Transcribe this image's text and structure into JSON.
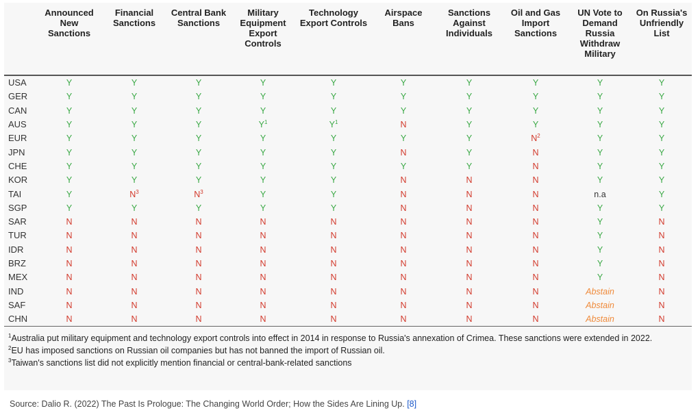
{
  "columns": [
    "Announced New Sanctions",
    "Financial Sanctions",
    "Central Bank Sanctions",
    "Military Equipment Export Controls",
    "Technology Export Controls",
    "Airspace Bans",
    "Sanctions Against Individuals",
    "Oil and Gas Import Sanctions",
    "UN Vote to Demand Russia Withdraw Military",
    "On Russia's Unfriendly List"
  ],
  "rows": [
    {
      "country": "USA",
      "cells": [
        [
          "Y",
          ""
        ],
        [
          "Y",
          ""
        ],
        [
          "Y",
          ""
        ],
        [
          "Y",
          ""
        ],
        [
          "Y",
          ""
        ],
        [
          "Y",
          ""
        ],
        [
          "Y",
          ""
        ],
        [
          "Y",
          ""
        ],
        [
          "Y",
          ""
        ],
        [
          "Y",
          ""
        ]
      ]
    },
    {
      "country": "GER",
      "cells": [
        [
          "Y",
          ""
        ],
        [
          "Y",
          ""
        ],
        [
          "Y",
          ""
        ],
        [
          "Y",
          ""
        ],
        [
          "Y",
          ""
        ],
        [
          "Y",
          ""
        ],
        [
          "Y",
          ""
        ],
        [
          "Y",
          ""
        ],
        [
          "Y",
          ""
        ],
        [
          "Y",
          ""
        ]
      ]
    },
    {
      "country": "CAN",
      "cells": [
        [
          "Y",
          ""
        ],
        [
          "Y",
          ""
        ],
        [
          "Y",
          ""
        ],
        [
          "Y",
          ""
        ],
        [
          "Y",
          ""
        ],
        [
          "Y",
          ""
        ],
        [
          "Y",
          ""
        ],
        [
          "Y",
          ""
        ],
        [
          "Y",
          ""
        ],
        [
          "Y",
          ""
        ]
      ]
    },
    {
      "country": "AUS",
      "cells": [
        [
          "Y",
          ""
        ],
        [
          "Y",
          ""
        ],
        [
          "Y",
          ""
        ],
        [
          "Y",
          "1"
        ],
        [
          "Y",
          "1"
        ],
        [
          "N",
          ""
        ],
        [
          "Y",
          ""
        ],
        [
          "Y",
          ""
        ],
        [
          "Y",
          ""
        ],
        [
          "Y",
          ""
        ]
      ]
    },
    {
      "country": "EUR",
      "cells": [
        [
          "Y",
          ""
        ],
        [
          "Y",
          ""
        ],
        [
          "Y",
          ""
        ],
        [
          "Y",
          ""
        ],
        [
          "Y",
          ""
        ],
        [
          "Y",
          ""
        ],
        [
          "Y",
          ""
        ],
        [
          "N",
          "2"
        ],
        [
          "Y",
          ""
        ],
        [
          "Y",
          ""
        ]
      ]
    },
    {
      "country": "JPN",
      "cells": [
        [
          "Y",
          ""
        ],
        [
          "Y",
          ""
        ],
        [
          "Y",
          ""
        ],
        [
          "Y",
          ""
        ],
        [
          "Y",
          ""
        ],
        [
          "N",
          ""
        ],
        [
          "Y",
          ""
        ],
        [
          "N",
          ""
        ],
        [
          "Y",
          ""
        ],
        [
          "Y",
          ""
        ]
      ]
    },
    {
      "country": "CHE",
      "cells": [
        [
          "Y",
          ""
        ],
        [
          "Y",
          ""
        ],
        [
          "Y",
          ""
        ],
        [
          "Y",
          ""
        ],
        [
          "Y",
          ""
        ],
        [
          "Y",
          ""
        ],
        [
          "Y",
          ""
        ],
        [
          "N",
          ""
        ],
        [
          "Y",
          ""
        ],
        [
          "Y",
          ""
        ]
      ]
    },
    {
      "country": "KOR",
      "cells": [
        [
          "Y",
          ""
        ],
        [
          "Y",
          ""
        ],
        [
          "Y",
          ""
        ],
        [
          "Y",
          ""
        ],
        [
          "Y",
          ""
        ],
        [
          "N",
          ""
        ],
        [
          "N",
          ""
        ],
        [
          "N",
          ""
        ],
        [
          "Y",
          ""
        ],
        [
          "Y",
          ""
        ]
      ]
    },
    {
      "country": "TAI",
      "cells": [
        [
          "Y",
          ""
        ],
        [
          "N",
          "3"
        ],
        [
          "N",
          "3"
        ],
        [
          "Y",
          ""
        ],
        [
          "Y",
          ""
        ],
        [
          "N",
          ""
        ],
        [
          "N",
          ""
        ],
        [
          "N",
          ""
        ],
        [
          "n.a",
          ""
        ],
        [
          "Y",
          ""
        ]
      ]
    },
    {
      "country": "SGP",
      "cells": [
        [
          "Y",
          ""
        ],
        [
          "Y",
          ""
        ],
        [
          "Y",
          ""
        ],
        [
          "Y",
          ""
        ],
        [
          "Y",
          ""
        ],
        [
          "N",
          ""
        ],
        [
          "N",
          ""
        ],
        [
          "N",
          ""
        ],
        [
          "Y",
          ""
        ],
        [
          "Y",
          ""
        ]
      ]
    },
    {
      "country": "SAR",
      "cells": [
        [
          "N",
          ""
        ],
        [
          "N",
          ""
        ],
        [
          "N",
          ""
        ],
        [
          "N",
          ""
        ],
        [
          "N",
          ""
        ],
        [
          "N",
          ""
        ],
        [
          "N",
          ""
        ],
        [
          "N",
          ""
        ],
        [
          "Y",
          ""
        ],
        [
          "N",
          ""
        ]
      ]
    },
    {
      "country": "TUR",
      "cells": [
        [
          "N",
          ""
        ],
        [
          "N",
          ""
        ],
        [
          "N",
          ""
        ],
        [
          "N",
          ""
        ],
        [
          "N",
          ""
        ],
        [
          "N",
          ""
        ],
        [
          "N",
          ""
        ],
        [
          "N",
          ""
        ],
        [
          "Y",
          ""
        ],
        [
          "N",
          ""
        ]
      ]
    },
    {
      "country": "IDR",
      "cells": [
        [
          "N",
          ""
        ],
        [
          "N",
          ""
        ],
        [
          "N",
          ""
        ],
        [
          "N",
          ""
        ],
        [
          "N",
          ""
        ],
        [
          "N",
          ""
        ],
        [
          "N",
          ""
        ],
        [
          "N",
          ""
        ],
        [
          "Y",
          ""
        ],
        [
          "N",
          ""
        ]
      ]
    },
    {
      "country": "BRZ",
      "cells": [
        [
          "N",
          ""
        ],
        [
          "N",
          ""
        ],
        [
          "N",
          ""
        ],
        [
          "N",
          ""
        ],
        [
          "N",
          ""
        ],
        [
          "N",
          ""
        ],
        [
          "N",
          ""
        ],
        [
          "N",
          ""
        ],
        [
          "Y",
          ""
        ],
        [
          "N",
          ""
        ]
      ]
    },
    {
      "country": "MEX",
      "cells": [
        [
          "N",
          ""
        ],
        [
          "N",
          ""
        ],
        [
          "N",
          ""
        ],
        [
          "N",
          ""
        ],
        [
          "N",
          ""
        ],
        [
          "N",
          ""
        ],
        [
          "N",
          ""
        ],
        [
          "N",
          ""
        ],
        [
          "Y",
          ""
        ],
        [
          "N",
          ""
        ]
      ]
    },
    {
      "country": "IND",
      "cells": [
        [
          "N",
          ""
        ],
        [
          "N",
          ""
        ],
        [
          "N",
          ""
        ],
        [
          "N",
          ""
        ],
        [
          "N",
          ""
        ],
        [
          "N",
          ""
        ],
        [
          "N",
          ""
        ],
        [
          "N",
          ""
        ],
        [
          "Abstain",
          ""
        ],
        [
          "N",
          ""
        ]
      ]
    },
    {
      "country": "SAF",
      "cells": [
        [
          "N",
          ""
        ],
        [
          "N",
          ""
        ],
        [
          "N",
          ""
        ],
        [
          "N",
          ""
        ],
        [
          "N",
          ""
        ],
        [
          "N",
          ""
        ],
        [
          "N",
          ""
        ],
        [
          "N",
          ""
        ],
        [
          "Abstain",
          ""
        ],
        [
          "N",
          ""
        ]
      ]
    },
    {
      "country": "CHN",
      "cells": [
        [
          "N",
          ""
        ],
        [
          "N",
          ""
        ],
        [
          "N",
          ""
        ],
        [
          "N",
          ""
        ],
        [
          "N",
          ""
        ],
        [
          "N",
          ""
        ],
        [
          "N",
          ""
        ],
        [
          "N",
          ""
        ],
        [
          "Abstain",
          ""
        ],
        [
          "N",
          ""
        ]
      ]
    }
  ],
  "footnotes": [
    {
      "num": "1",
      "text": "Australia put military equipment and technology export controls into effect in 2014 in response to Russia's annexation of Crimea. These sanctions were extended in 2022."
    },
    {
      "num": "2",
      "text": "EU has imposed sanctions on Russian oil companies but has not banned the import of Russian oil."
    },
    {
      "num": "3",
      "text": "Taiwan's sanctions list did not explicitly mention financial or central-bank-related sanctions"
    }
  ],
  "source": {
    "text": "Source: Dalio R. (2022) The Past Is Prologue: The Changing World Order; How the Sides Are Lining Up.",
    "link_text": "[8]"
  },
  "colors": {
    "yes": "#3aa845",
    "no": "#d23a2c",
    "abstain": "#ef8a3a",
    "link": "#1a57c9"
  }
}
